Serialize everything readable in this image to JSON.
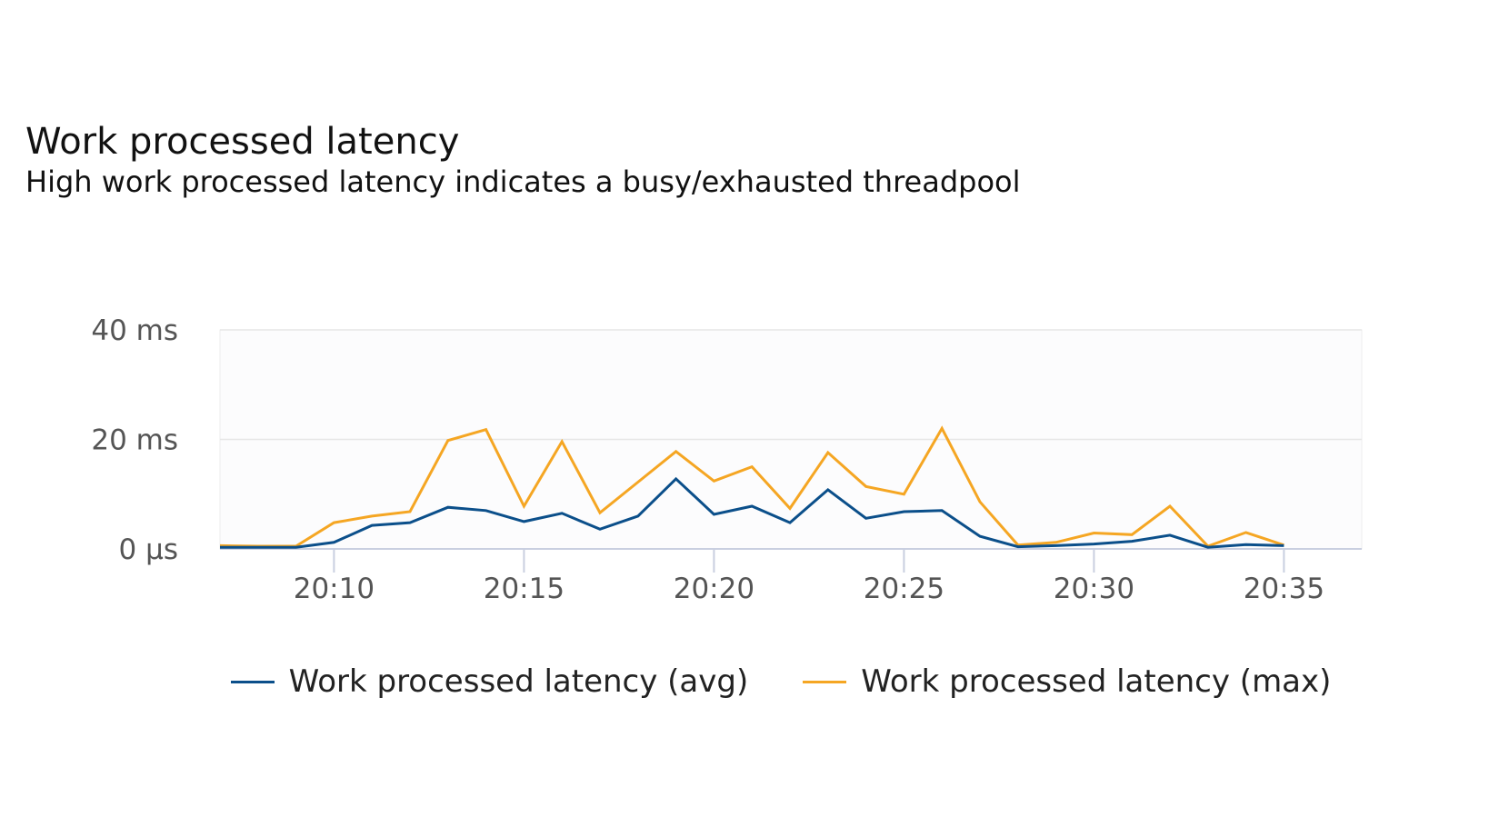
{
  "header": {
    "title": "Work processed latency",
    "subtitle": "High work processed latency indicates a busy/exhausted threadpool"
  },
  "chart_data": {
    "type": "line",
    "title": "Work processed latency",
    "subtitle": "High work processed latency indicates a busy/exhausted threadpool",
    "xlabel": "",
    "ylabel": "",
    "x": [
      "20:07",
      "20:08",
      "20:09",
      "20:10",
      "20:11",
      "20:12",
      "20:13",
      "20:14",
      "20:15",
      "20:16",
      "20:17",
      "20:18",
      "20:19",
      "20:20",
      "20:21",
      "20:22",
      "20:23",
      "20:24",
      "20:25",
      "20:26",
      "20:27",
      "20:28",
      "20:29",
      "20:30",
      "20:31",
      "20:32",
      "20:33",
      "20:34",
      "20:35"
    ],
    "x_ticks": [
      "20:10",
      "20:15",
      "20:20",
      "20:25",
      "20:30",
      "20:35"
    ],
    "y_ticks": [
      {
        "value": 0,
        "label": "0 µs"
      },
      {
        "value": 20,
        "label": "20 ms"
      },
      {
        "value": 40,
        "label": "40 ms"
      }
    ],
    "ylim": [
      0,
      40
    ],
    "y_unit": "ms",
    "grid": true,
    "legend_position": "bottom",
    "series": [
      {
        "name": "Work processed latency (avg)",
        "color": "#0b4f8a",
        "values": [
          0.3,
          0.3,
          0.3,
          1.2,
          4.3,
          4.8,
          7.6,
          7.0,
          5.0,
          6.5,
          3.6,
          6.0,
          12.8,
          6.3,
          7.8,
          4.8,
          10.8,
          5.6,
          6.8,
          7.0,
          2.3,
          0.4,
          0.6,
          0.9,
          1.4,
          2.5,
          0.3,
          0.8,
          0.6
        ]
      },
      {
        "name": "Work processed latency (max)",
        "color": "#f5a623",
        "values": [
          0.6,
          0.5,
          0.5,
          4.8,
          6.0,
          6.8,
          19.8,
          21.8,
          7.8,
          19.6,
          6.6,
          12.2,
          17.8,
          12.4,
          15.0,
          7.4,
          17.6,
          11.4,
          10.0,
          22.0,
          8.6,
          0.7,
          1.2,
          2.9,
          2.6,
          7.8,
          0.5,
          3.0,
          0.7
        ]
      }
    ]
  }
}
